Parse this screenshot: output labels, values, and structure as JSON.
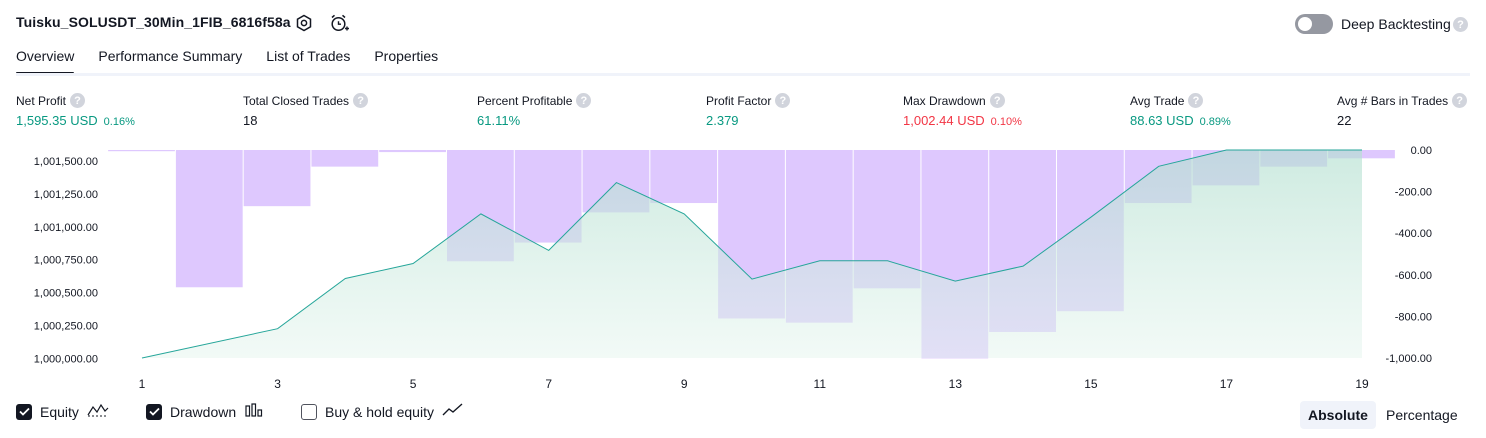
{
  "header": {
    "title": "Tuisku_SOLUSDT_30Min_1FIB_6816f58a",
    "deep_backtesting_label": "Deep Backtesting"
  },
  "tabs": [
    {
      "label": "Overview"
    },
    {
      "label": "Performance Summary"
    },
    {
      "label": "List of Trades"
    },
    {
      "label": "Properties"
    }
  ],
  "metrics": {
    "net_profit": {
      "label": "Net Profit",
      "value": "1,595.35 USD",
      "pct": "0.16%"
    },
    "total_closed_trades": {
      "label": "Total Closed Trades",
      "value": "18"
    },
    "percent_profitable": {
      "label": "Percent Profitable",
      "value": "61.11%"
    },
    "profit_factor": {
      "label": "Profit Factor",
      "value": "2.379"
    },
    "max_drawdown": {
      "label": "Max Drawdown",
      "value": "1,002.44 USD",
      "pct": "0.10%"
    },
    "avg_trade": {
      "label": "Avg Trade",
      "value": "88.63 USD",
      "pct": "0.89%"
    },
    "avg_bars": {
      "label": "Avg # Bars in Trades",
      "value": "22"
    }
  },
  "legend": {
    "equity_label": "Equity",
    "drawdown_label": "Drawdown",
    "buy_hold_label": "Buy & hold equity",
    "equity_checked": true,
    "drawdown_checked": true,
    "buy_hold_checked": false
  },
  "view_toggle": {
    "absolute_label": "Absolute",
    "percentage_label": "Percentage",
    "selected": "Absolute"
  },
  "colors": {
    "profit": "#089981",
    "loss": "#f23645",
    "equity_line": "#26a69a",
    "drawdown_fill": "#c9a6fd"
  },
  "chart_data": {
    "type": "area",
    "x_ticks": [
      "1",
      "3",
      "5",
      "7",
      "9",
      "11",
      "13",
      "15",
      "17",
      "19"
    ],
    "y_left_ticks": [
      "1,001,500.00",
      "1,001,250.00",
      "1,001,000.00",
      "1,000,750.00",
      "1,000,500.00",
      "1,000,250.00",
      "1,000,000.00"
    ],
    "y_right_ticks": [
      "0.00",
      "-200.00",
      "-400.00",
      "-600.00",
      "-800.00",
      "-1,000.00"
    ],
    "left_ylim": [
      1000000,
      1001595
    ],
    "right_ylim": [
      -1000,
      0
    ],
    "equity": {
      "name": "Equity",
      "x": [
        1,
        3,
        4,
        5,
        6,
        7,
        8,
        9,
        10,
        11,
        12,
        13,
        14,
        15,
        16,
        17,
        18,
        19
      ],
      "y": [
        1000000,
        1000225,
        1000610,
        1000725,
        1001105,
        1000825,
        1001345,
        1001105,
        1000605,
        1000745,
        1000745,
        1000590,
        1000705,
        1001080,
        1001470,
        1001595,
        1001595,
        1001595
      ]
    },
    "drawdown": {
      "name": "Drawdown",
      "bars": [
        {
          "x": 1,
          "value": 0
        },
        {
          "x": 2,
          "value": -660
        },
        {
          "x": 3,
          "value": -270
        },
        {
          "x": 4,
          "value": -80
        },
        {
          "x": 5,
          "value": -10
        },
        {
          "x": 6,
          "value": -535
        },
        {
          "x": 7,
          "value": -445
        },
        {
          "x": 8,
          "value": -300
        },
        {
          "x": 9,
          "value": -255
        },
        {
          "x": 10,
          "value": -810
        },
        {
          "x": 11,
          "value": -830
        },
        {
          "x": 12,
          "value": -665
        },
        {
          "x": 13,
          "value": -1002
        },
        {
          "x": 14,
          "value": -875
        },
        {
          "x": 15,
          "value": -775
        },
        {
          "x": 16,
          "value": -255
        },
        {
          "x": 17,
          "value": -170
        },
        {
          "x": 18,
          "value": -80
        },
        {
          "x": 19,
          "value": -40
        }
      ]
    }
  }
}
